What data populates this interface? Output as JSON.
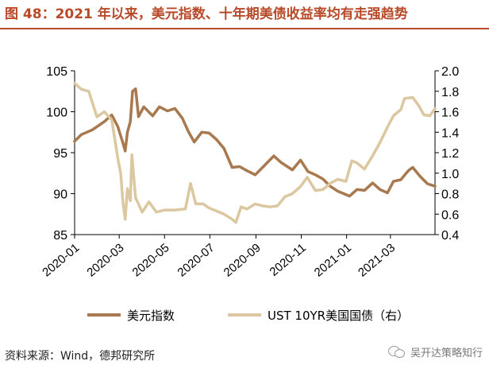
{
  "header": {
    "title": "图 48：2021 年以来，美元指数、十年期美债收益率均有走强趋势"
  },
  "footer": {
    "source": "资料来源：Wind，德邦研究所",
    "watermark": "吴开达策略知行"
  },
  "colors": {
    "title": "#b84a2a",
    "dxy": "#a8784e",
    "ust": "#dcc8a0",
    "axis": "#000000"
  },
  "chart_data": {
    "type": "line",
    "title": "",
    "x_tick_labels": [
      "2020-01",
      "2020-03",
      "2020-05",
      "2020-07",
      "2020-09",
      "2020-11",
      "2021-01",
      "2021-03"
    ],
    "x_ticks": [
      "2020-01-01",
      "2020-03-01",
      "2020-05-01",
      "2020-07-01",
      "2020-09-01",
      "2020-11-01",
      "2021-01-01",
      "2021-03-01"
    ],
    "xlim": [
      "2020-01-01",
      "2021-04-30"
    ],
    "y_left": {
      "lim": [
        85,
        105
      ],
      "ticks": [
        85,
        90,
        95,
        100,
        105
      ]
    },
    "y_right": {
      "lim": [
        0.4,
        2.0
      ],
      "ticks": [
        "0.4",
        "0.6",
        "0.8",
        "1.0",
        "1.2",
        "1.4",
        "1.6",
        "1.8",
        "2.0"
      ]
    },
    "legend_position": "bottom",
    "series": [
      {
        "name": "美元指数",
        "axis": "left",
        "color": "#a8784e",
        "points": [
          [
            "2020-01-01",
            96.4
          ],
          [
            "2020-01-10",
            97.2
          ],
          [
            "2020-01-25",
            97.8
          ],
          [
            "2020-02-10",
            98.8
          ],
          [
            "2020-02-20",
            99.6
          ],
          [
            "2020-02-28",
            98.2
          ],
          [
            "2020-03-05",
            96.5
          ],
          [
            "2020-03-09",
            95.2
          ],
          [
            "2020-03-12",
            97.5
          ],
          [
            "2020-03-16",
            98.8
          ],
          [
            "2020-03-19",
            102.5
          ],
          [
            "2020-03-23",
            102.8
          ],
          [
            "2020-03-27",
            99.4
          ],
          [
            "2020-04-03",
            100.6
          ],
          [
            "2020-04-15",
            99.5
          ],
          [
            "2020-04-24",
            100.6
          ],
          [
            "2020-05-05",
            100.1
          ],
          [
            "2020-05-15",
            100.4
          ],
          [
            "2020-05-25",
            99.2
          ],
          [
            "2020-06-02",
            97.6
          ],
          [
            "2020-06-10",
            96.3
          ],
          [
            "2020-06-20",
            97.5
          ],
          [
            "2020-06-30",
            97.4
          ],
          [
            "2020-07-10",
            96.6
          ],
          [
            "2020-07-20",
            95.5
          ],
          [
            "2020-07-31",
            93.2
          ],
          [
            "2020-08-10",
            93.3
          ],
          [
            "2020-08-20",
            92.8
          ],
          [
            "2020-08-31",
            92.3
          ],
          [
            "2020-09-10",
            93.2
          ],
          [
            "2020-09-25",
            94.6
          ],
          [
            "2020-10-05",
            93.8
          ],
          [
            "2020-10-20",
            92.9
          ],
          [
            "2020-10-31",
            94.1
          ],
          [
            "2020-11-10",
            92.7
          ],
          [
            "2020-11-20",
            92.3
          ],
          [
            "2020-11-30",
            91.8
          ],
          [
            "2020-12-10",
            90.9
          ],
          [
            "2020-12-20",
            90.3
          ],
          [
            "2021-01-05",
            89.7
          ],
          [
            "2021-01-15",
            90.5
          ],
          [
            "2021-01-25",
            90.4
          ],
          [
            "2021-02-05",
            91.3
          ],
          [
            "2021-02-15",
            90.5
          ],
          [
            "2021-02-25",
            90.1
          ],
          [
            "2021-03-05",
            91.5
          ],
          [
            "2021-03-15",
            91.7
          ],
          [
            "2021-03-25",
            92.8
          ],
          [
            "2021-03-31",
            93.2
          ],
          [
            "2021-04-10",
            92.1
          ],
          [
            "2021-04-20",
            91.2
          ],
          [
            "2021-04-30",
            90.9
          ]
        ]
      },
      {
        "name": "UST 10YR美国国债（右）",
        "axis": "right",
        "color": "#dcc8a0",
        "points": [
          [
            "2020-01-01",
            1.88
          ],
          [
            "2020-01-10",
            1.82
          ],
          [
            "2020-01-20",
            1.8
          ],
          [
            "2020-01-31",
            1.55
          ],
          [
            "2020-02-10",
            1.6
          ],
          [
            "2020-02-20",
            1.52
          ],
          [
            "2020-02-28",
            1.15
          ],
          [
            "2020-03-03",
            1.0
          ],
          [
            "2020-03-06",
            0.72
          ],
          [
            "2020-03-09",
            0.55
          ],
          [
            "2020-03-12",
            0.85
          ],
          [
            "2020-03-16",
            0.73
          ],
          [
            "2020-03-18",
            1.18
          ],
          [
            "2020-03-23",
            0.76
          ],
          [
            "2020-04-01",
            0.62
          ],
          [
            "2020-04-10",
            0.72
          ],
          [
            "2020-04-20",
            0.62
          ],
          [
            "2020-05-01",
            0.64
          ],
          [
            "2020-05-15",
            0.64
          ],
          [
            "2020-05-29",
            0.65
          ],
          [
            "2020-06-05",
            0.9
          ],
          [
            "2020-06-12",
            0.7
          ],
          [
            "2020-06-22",
            0.7
          ],
          [
            "2020-06-30",
            0.66
          ],
          [
            "2020-07-10",
            0.63
          ],
          [
            "2020-07-20",
            0.6
          ],
          [
            "2020-07-31",
            0.55
          ],
          [
            "2020-08-05",
            0.52
          ],
          [
            "2020-08-12",
            0.67
          ],
          [
            "2020-08-20",
            0.65
          ],
          [
            "2020-08-31",
            0.7
          ],
          [
            "2020-09-10",
            0.68
          ],
          [
            "2020-09-20",
            0.67
          ],
          [
            "2020-09-30",
            0.68
          ],
          [
            "2020-10-10",
            0.77
          ],
          [
            "2020-10-20",
            0.8
          ],
          [
            "2020-10-31",
            0.87
          ],
          [
            "2020-11-09",
            0.96
          ],
          [
            "2020-11-20",
            0.83
          ],
          [
            "2020-11-30",
            0.84
          ],
          [
            "2020-12-10",
            0.9
          ],
          [
            "2020-12-20",
            0.94
          ],
          [
            "2020-12-31",
            0.92
          ],
          [
            "2021-01-08",
            1.12
          ],
          [
            "2021-01-15",
            1.1
          ],
          [
            "2021-01-25",
            1.04
          ],
          [
            "2021-02-05",
            1.17
          ],
          [
            "2021-02-15",
            1.3
          ],
          [
            "2021-02-25",
            1.45
          ],
          [
            "2021-03-05",
            1.56
          ],
          [
            "2021-03-15",
            1.62
          ],
          [
            "2021-03-20",
            1.73
          ],
          [
            "2021-03-31",
            1.74
          ],
          [
            "2021-04-08",
            1.66
          ],
          [
            "2021-04-15",
            1.57
          ],
          [
            "2021-04-23",
            1.56
          ],
          [
            "2021-04-30",
            1.63
          ]
        ]
      }
    ]
  }
}
